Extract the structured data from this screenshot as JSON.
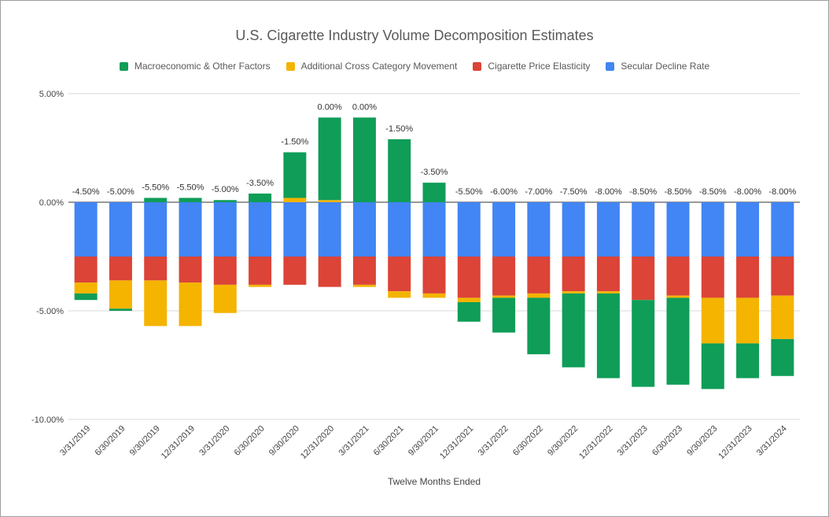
{
  "chart_data": {
    "type": "bar",
    "stacked": true,
    "title": "U.S. Cigarette Industry Volume Decomposition Estimates",
    "xlabel": "Twelve Months Ended",
    "ylabel": "",
    "ylim": [
      -10,
      5
    ],
    "y_ticks": [
      "5.00%",
      "0.00%",
      "-5.00%",
      "-10.00%"
    ],
    "y_tick_values": [
      5,
      0,
      -5,
      -10
    ],
    "legend_position": "top",
    "grid": true,
    "categories": [
      "3/31/2019",
      "6/30/2019",
      "9/30/2019",
      "12/31/2019",
      "3/31/2020",
      "6/30/2020",
      "9/30/2020",
      "12/31/2020",
      "3/31/2021",
      "6/30/2021",
      "9/30/2021",
      "12/31/2021",
      "3/31/2022",
      "6/30/2022",
      "9/30/2022",
      "12/31/2022",
      "3/31/2023",
      "6/30/2023",
      "9/30/2023",
      "12/31/2023",
      "3/31/2024"
    ],
    "series": [
      {
        "name": "Macroeconomic & Other Factors",
        "color": "#0f9d58",
        "values": [
          -0.3,
          -0.1,
          0.2,
          0.2,
          0.1,
          0.4,
          2.1,
          3.8,
          3.9,
          2.9,
          0.9,
          -0.9,
          -1.6,
          -2.6,
          -3.4,
          -3.9,
          -4.0,
          -4.0,
          -2.1,
          -1.6,
          -1.7
        ]
      },
      {
        "name": "Additional Cross Category Movement",
        "color": "#f4b400",
        "values": [
          -0.5,
          -1.3,
          -2.1,
          -2.0,
          -1.3,
          -0.1,
          0.2,
          0.1,
          -0.1,
          -0.3,
          -0.2,
          -0.2,
          -0.1,
          -0.2,
          -0.1,
          -0.1,
          0.0,
          -0.1,
          -2.1,
          -2.1,
          -2.0
        ]
      },
      {
        "name": "Cigarette Price Elasticity",
        "color": "#db4437",
        "values": [
          -1.2,
          -1.1,
          -1.1,
          -1.2,
          -1.3,
          -1.3,
          -1.3,
          -1.4,
          -1.3,
          -1.6,
          -1.7,
          -1.9,
          -1.8,
          -1.7,
          -1.6,
          -1.6,
          -2.0,
          -1.8,
          -1.9,
          -1.9,
          -1.8
        ]
      },
      {
        "name": "Secular Decline Rate",
        "color": "#4285f4",
        "values": [
          -2.5,
          -2.5,
          -2.5,
          -2.5,
          -2.5,
          -2.5,
          -2.5,
          -2.5,
          -2.5,
          -2.5,
          -2.5,
          -2.5,
          -2.5,
          -2.5,
          -2.5,
          -2.5,
          -2.5,
          -2.5,
          -2.5,
          -2.5,
          -2.5
        ]
      }
    ],
    "totals": [
      "-4.50%",
      "-5.00%",
      "-5.50%",
      "-5.50%",
      "-5.00%",
      "-3.50%",
      "-1.50%",
      "0.00%",
      "0.00%",
      "-1.50%",
      "-3.50%",
      "-5.50%",
      "-6.00%",
      "-7.00%",
      "-7.50%",
      "-8.00%",
      "-8.50%",
      "-8.50%",
      "-8.50%",
      "-8.00%",
      "-8.00%"
    ]
  }
}
